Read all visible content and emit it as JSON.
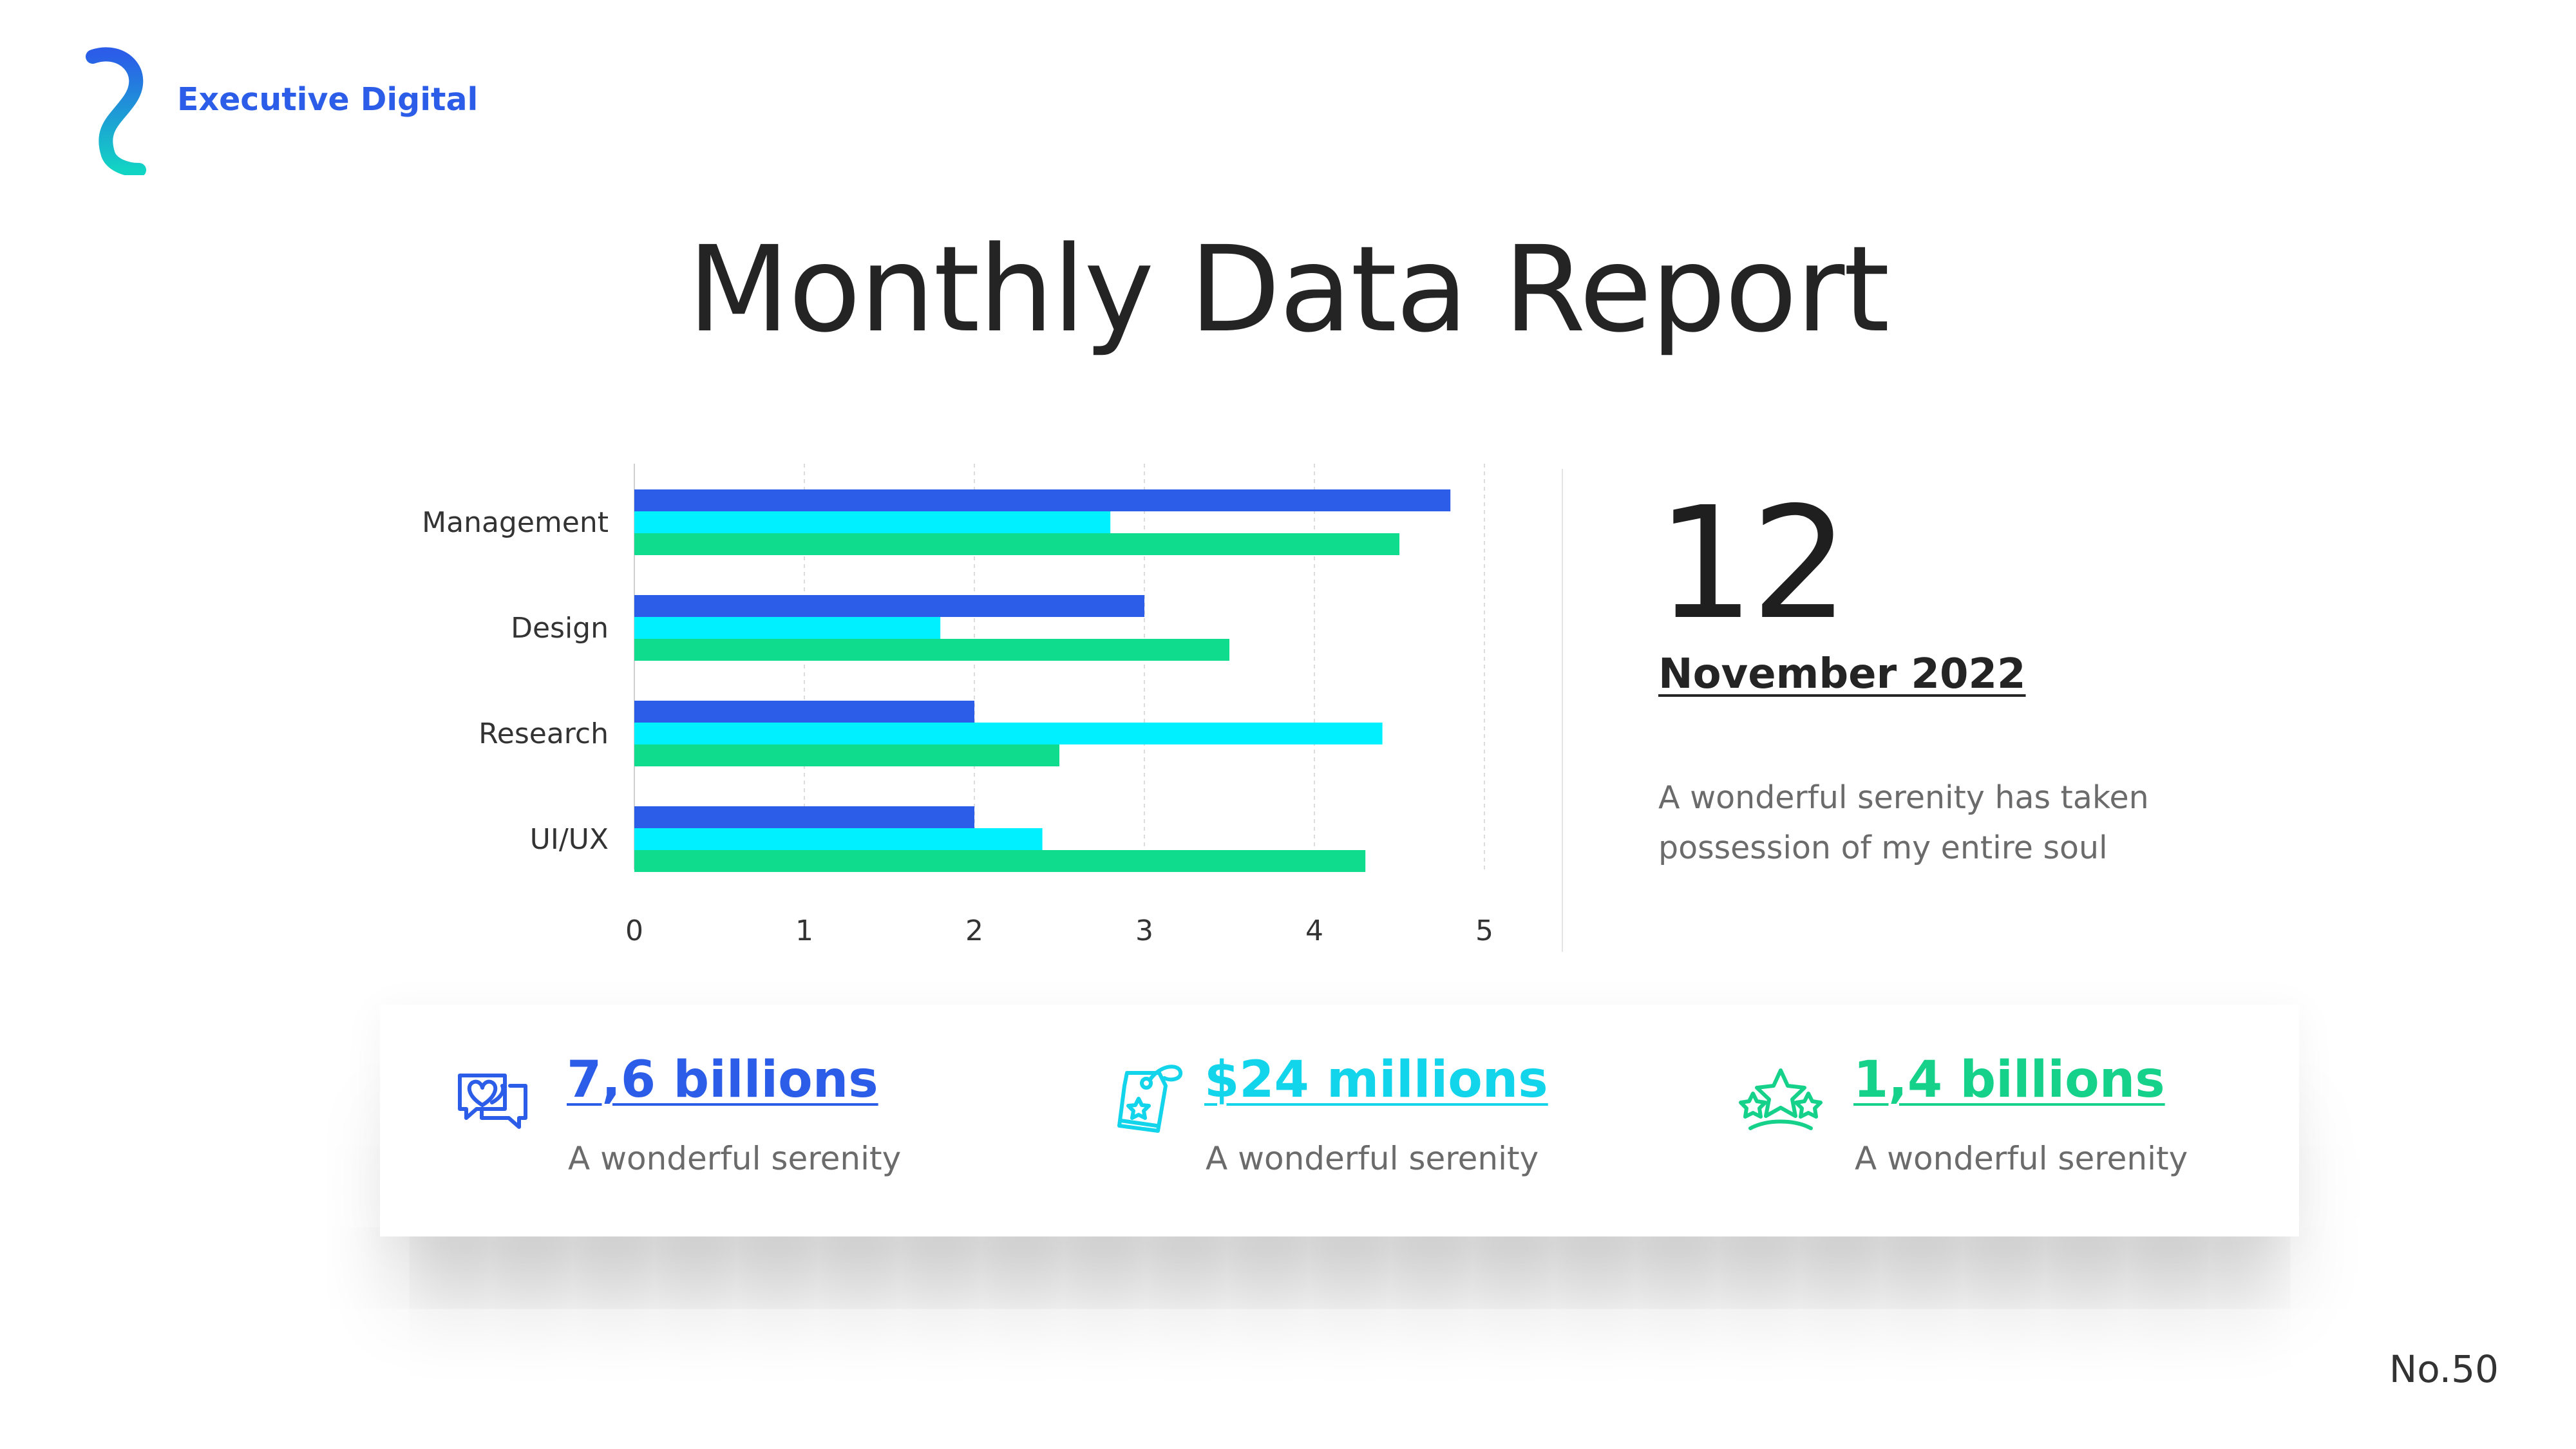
{
  "brand": {
    "name": "Executive Digital",
    "logo_icon": "wave-logo-icon"
  },
  "title": "Monthly Data Report",
  "date": {
    "day": "12",
    "month_year": "November 2022"
  },
  "blurb": "A wonderful serenity has taken possession of my entire soul",
  "stats": [
    {
      "value": "7,6 billions",
      "caption": "A wonderful serenity",
      "icon": "hearts-chat-icon",
      "color": "#2b5de8"
    },
    {
      "value": "$24 millions",
      "caption": "A wonderful serenity",
      "icon": "price-tag-icon",
      "color": "#12d4ea"
    },
    {
      "value": "1,4 billions",
      "caption": "A wonderful serenity",
      "icon": "stars-icon",
      "color": "#16d18a"
    }
  ],
  "page_number": "No.50",
  "colors": {
    "blue": "#2b5de8",
    "cyan": "#00f0ff",
    "green": "#0fdc8c",
    "text": "#242424",
    "muted": "#6b6b6b"
  },
  "chart_data": {
    "type": "bar",
    "orientation": "horizontal",
    "categories": [
      "Management",
      "Design",
      "Research",
      "UI/UX"
    ],
    "series": [
      {
        "values": [
          4.8,
          3.0,
          2.0,
          2.0
        ],
        "color": "#2b5de8"
      },
      {
        "values": [
          2.8,
          1.8,
          4.4,
          2.4
        ],
        "color": "#00f0ff"
      },
      {
        "values": [
          4.5,
          3.5,
          2.5,
          4.3
        ],
        "color": "#0fdc8c"
      }
    ],
    "xlim": [
      0,
      5
    ],
    "ticks": [
      "0",
      "1",
      "2",
      "3",
      "4",
      "5"
    ],
    "grid": "vertical-dashed",
    "legend": "none"
  }
}
